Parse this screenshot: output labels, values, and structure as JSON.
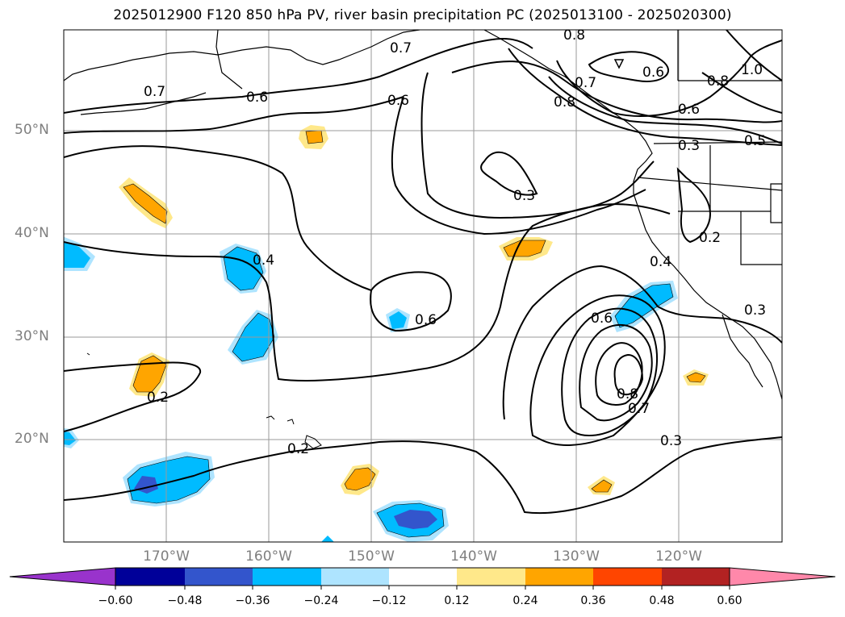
{
  "title": "2025012900 F120 850 hPa PV, river basin precipitation PC (2025013100 - 2025020300)",
  "lat_labels": [
    "50°N",
    "40°N",
    "30°N",
    "20°N"
  ],
  "lon_labels": [
    "170°W",
    "160°W",
    "150°W",
    "140°W",
    "130°W",
    "120°W"
  ],
  "contour_labels": [
    "0.7",
    "0.6",
    "0.7",
    "0.8",
    "0.6",
    "1.0",
    "0.8",
    "0.7",
    "0.8",
    "0.6",
    "0.5",
    "0.3",
    "0.3",
    "0.6",
    "0.2",
    "0.4",
    "0.4",
    "0.6",
    "0.6",
    "0.8",
    "0.7",
    "0.3",
    "0.3",
    "0.2",
    "0.2"
  ],
  "colorbar": {
    "ticks": [
      "−0.60",
      "−0.48",
      "−0.36",
      "−0.24",
      "−0.12",
      "0.12",
      "0.24",
      "0.36",
      "0.48",
      "0.60"
    ],
    "colors": [
      "#9933cc",
      "#000099",
      "#3355cc",
      "#00bbff",
      "#aee4ff",
      "#ffffff",
      "#ffe88a",
      "#ffa500",
      "#ff4500",
      "#b22222",
      "#ff88aa"
    ]
  }
}
